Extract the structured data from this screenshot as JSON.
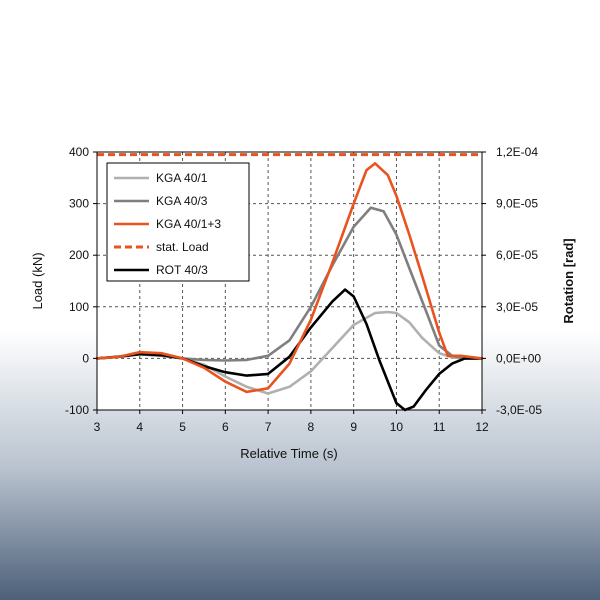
{
  "chart_data": {
    "type": "line",
    "title": "",
    "xlabel": "Relative Time (s)",
    "ylabel": "Load (kN)",
    "y2label": "Rotation [rad]",
    "xlim": [
      3,
      12
    ],
    "ylim": [
      -100,
      400
    ],
    "y2lim": [
      -3e-05,
      0.00012
    ],
    "x_ticks": [
      "3",
      "4",
      "5",
      "6",
      "7",
      "8",
      "9",
      "10",
      "11",
      "12"
    ],
    "y_ticks": [
      "-100",
      "0",
      "100",
      "200",
      "300",
      "400"
    ],
    "y2_ticks": [
      "-3,0E-05",
      "0,0E+00",
      "3,0E-05",
      "6,0E-05",
      "9,0E-05",
      "1,2E-04"
    ],
    "grid": true,
    "legend_position": "top-left",
    "series": [
      {
        "name": "KGA 40/1",
        "color": "#b0b0b0",
        "dash": "solid",
        "axis": "left",
        "x": [
          3,
          3.5,
          4,
          4.5,
          5,
          5.5,
          6,
          6.5,
          7,
          7.5,
          8,
          8.5,
          9,
          9.5,
          9.8,
          10,
          10.3,
          10.6,
          11,
          11.3,
          11.6,
          12
        ],
        "y": [
          0,
          3,
          10,
          8,
          0,
          -12,
          -35,
          -55,
          -68,
          -55,
          -25,
          20,
          65,
          88,
          90,
          88,
          70,
          40,
          10,
          2,
          0,
          0
        ]
      },
      {
        "name": "KGA 40/3",
        "color": "#7f7f7f",
        "dash": "solid",
        "axis": "left",
        "x": [
          3,
          3.5,
          4,
          4.5,
          5,
          5.5,
          6,
          6.5,
          7,
          7.5,
          8,
          8.5,
          9,
          9.4,
          9.7,
          10,
          10.3,
          10.7,
          11,
          11.3,
          11.6,
          12
        ],
        "y": [
          0,
          3,
          8,
          5,
          0,
          -3,
          -4,
          -3,
          5,
          35,
          100,
          180,
          255,
          292,
          285,
          240,
          175,
          90,
          25,
          5,
          0,
          0
        ]
      },
      {
        "name": "KGA 40/1+3",
        "color": "#e8531f",
        "dash": "solid",
        "axis": "left",
        "x": [
          3,
          3.5,
          4,
          4.5,
          5,
          5.5,
          6,
          6.5,
          7,
          7.5,
          8,
          8.5,
          9,
          9.3,
          9.5,
          9.8,
          10,
          10.3,
          10.6,
          11,
          11.2,
          11.5,
          12
        ],
        "y": [
          0,
          3,
          12,
          10,
          0,
          -18,
          -45,
          -65,
          -58,
          -10,
          75,
          185,
          300,
          365,
          378,
          355,
          315,
          240,
          160,
          50,
          5,
          5,
          0
        ]
      },
      {
        "name": "stat. Load",
        "color": "#e8531f",
        "dash": "dashed",
        "axis": "left",
        "x": [
          3,
          12
        ],
        "y": [
          395,
          395
        ]
      },
      {
        "name": "ROT 40/3",
        "color": "#000000",
        "dash": "solid",
        "axis": "right",
        "x": [
          3,
          3.5,
          4,
          4.5,
          5,
          5.5,
          6,
          6.5,
          7,
          7.5,
          8,
          8.5,
          8.8,
          9,
          9.3,
          9.6,
          10,
          10.2,
          10.4,
          10.7,
          11,
          11.3,
          11.6,
          12
        ],
        "y": [
          0,
          1e-06,
          2.5e-06,
          2e-06,
          0,
          -4.5e-06,
          -8e-06,
          -1e-05,
          -9e-06,
          1e-06,
          1.8e-05,
          3.3e-05,
          4e-05,
          3.6e-05,
          2e-05,
          -1e-06,
          -2.6e-05,
          -3e-05,
          -2.8e-05,
          -1.8e-05,
          -9e-06,
          -3e-06,
          0,
          0
        ]
      }
    ]
  }
}
